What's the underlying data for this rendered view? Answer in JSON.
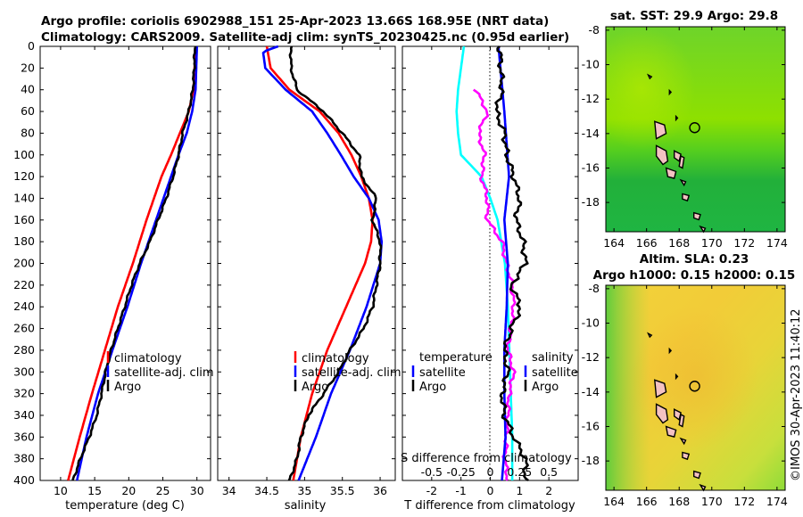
{
  "header": {
    "title_line1": "Argo profile: coriolis 6902988_151 25-Apr-2023 13.66S 168.95E (NRT data)",
    "title_line2": "Climatology: CARS2009. Satellite-adj clim: synTS_20230425.nc (0.95d earlier)"
  },
  "colors": {
    "climatology": "#ff0000",
    "satellite": "#0000ff",
    "argo": "#000000",
    "temp_diff": "#00ffff",
    "sal_diff": "#ff00ff"
  },
  "chart_data": [
    {
      "type": "line",
      "id": "temperature",
      "xlabel": "temperature (deg C)",
      "ylabel": "",
      "xlim": [
        7,
        32
      ],
      "ylim": [
        400,
        0
      ],
      "xticks": [
        10,
        15,
        20,
        25,
        30
      ],
      "yticks": [
        0,
        20,
        40,
        60,
        80,
        100,
        120,
        140,
        160,
        180,
        200,
        220,
        240,
        260,
        280,
        300,
        320,
        340,
        360,
        380,
        400
      ],
      "legend": [
        "climatology",
        "satellite-adj. clim",
        "Argo"
      ],
      "legend_position": "bottom-right",
      "series": [
        {
          "name": "climatology",
          "color": "red",
          "depth": [
            0,
            40,
            60,
            80,
            100,
            120,
            160,
            200,
            240,
            280,
            320,
            360,
            400
          ],
          "values": [
            29.8,
            29.5,
            28.8,
            27.5,
            26.2,
            24.8,
            22.6,
            20.6,
            18.4,
            16.5,
            14.6,
            12.8,
            11.1
          ]
        },
        {
          "name": "satellite-adj. clim",
          "color": "blue",
          "depth": [
            0,
            40,
            60,
            80,
            100,
            120,
            160,
            200,
            240,
            280,
            320,
            360,
            400
          ],
          "values": [
            30.0,
            29.8,
            29.3,
            28.5,
            27.3,
            26.2,
            24.0,
            21.8,
            19.8,
            17.6,
            15.5,
            13.8,
            12.4
          ]
        },
        {
          "name": "Argo",
          "color": "black",
          "depth": [
            0,
            20,
            40,
            60,
            80,
            100,
            120,
            140,
            160,
            180,
            200,
            220,
            240,
            260,
            280,
            300,
            320,
            340,
            360,
            380,
            400
          ],
          "values": [
            29.7,
            29.6,
            29.4,
            28.8,
            27.9,
            27.3,
            26.5,
            25.5,
            24.3,
            23.1,
            21.6,
            20.4,
            19.4,
            18.4,
            17.4,
            16.6,
            16.0,
            15.3,
            14.2,
            12.9,
            11.8
          ]
        }
      ]
    },
    {
      "type": "line",
      "id": "salinity",
      "xlabel": "salinity",
      "ylabel": "",
      "xlim": [
        33.85,
        36.2
      ],
      "ylim": [
        400,
        0
      ],
      "xticks": [
        34,
        34.5,
        35,
        35.5,
        36
      ],
      "xticklabels": [
        "34",
        "34.5",
        "35",
        "35.5",
        "36"
      ],
      "legend": [
        "climatology",
        "satellite-adj. clim",
        "Argo"
      ],
      "legend_position": "bottom-right",
      "series": [
        {
          "name": "climatology",
          "color": "red",
          "depth": [
            0,
            20,
            40,
            60,
            80,
            100,
            120,
            140,
            160,
            180,
            200,
            240,
            280,
            320,
            360,
            400
          ],
          "values": [
            34.5,
            34.55,
            34.8,
            35.2,
            35.45,
            35.62,
            35.75,
            35.85,
            35.9,
            35.88,
            35.8,
            35.55,
            35.3,
            35.1,
            34.95,
            34.85
          ]
        },
        {
          "name": "satellite-adj. clim",
          "color": "blue",
          "depth": [
            0,
            5,
            20,
            40,
            60,
            80,
            100,
            120,
            140,
            160,
            180,
            200,
            240,
            280,
            320,
            360,
            400
          ],
          "values": [
            34.65,
            34.45,
            34.48,
            34.75,
            35.1,
            35.3,
            35.48,
            35.65,
            35.85,
            35.98,
            36.02,
            36.0,
            35.82,
            35.6,
            35.35,
            35.15,
            34.92
          ]
        },
        {
          "name": "Argo",
          "color": "black",
          "depth": [
            0,
            20,
            40,
            60,
            80,
            100,
            120,
            140,
            160,
            180,
            200,
            220,
            240,
            260,
            280,
            300,
            320,
            340,
            360,
            380,
            400
          ],
          "values": [
            34.82,
            34.82,
            34.9,
            35.25,
            35.5,
            35.72,
            35.75,
            35.95,
            35.9,
            36.0,
            36.0,
            35.95,
            35.9,
            35.78,
            35.6,
            35.45,
            35.25,
            35.05,
            34.95,
            34.9,
            34.8
          ]
        }
      ]
    },
    {
      "type": "line",
      "id": "difference",
      "xlabel": "T difference from climatology",
      "secondary_xlabel": "S difference from climatology",
      "xlim": [
        -3,
        3
      ],
      "ylim": [
        400,
        0
      ],
      "xticks": [
        -2,
        -1,
        0,
        1,
        2
      ],
      "secondary_xticks": [
        "-0.5",
        "-0.25",
        "0",
        "0.25",
        "0.5"
      ],
      "secondary_xlim": [
        -0.75,
        0.75
      ],
      "legend_temperature": [
        "temperature",
        "satellite",
        "Argo"
      ],
      "legend_salinity": [
        "salinity",
        "satellite",
        "Argo"
      ],
      "series": [
        {
          "name": "T diff satellite",
          "color": "cyan",
          "depth": [
            0,
            20,
            40,
            60,
            80,
            100,
            120,
            140,
            160,
            200,
            240,
            280,
            320,
            360,
            400
          ],
          "values": [
            -0.9,
            -1.0,
            -1.1,
            -1.15,
            -1.1,
            -1.0,
            -0.3,
            0.0,
            0.25,
            0.5,
            0.6,
            0.65,
            0.7,
            0.75,
            0.75
          ]
        },
        {
          "name": "T diff Argo",
          "color": "magenta",
          "depth": [
            40,
            60,
            80,
            100,
            120,
            140,
            160,
            180,
            200,
            220,
            240,
            260,
            280,
            300,
            320,
            340,
            360,
            380,
            400
          ],
          "values": [
            -0.5,
            -0.1,
            -0.4,
            -0.2,
            -0.3,
            -0.1,
            -0.1,
            0.4,
            0.55,
            0.75,
            0.8,
            0.7,
            0.6,
            0.8,
            0.65,
            0.6,
            0.55,
            0.5,
            0.6
          ]
        },
        {
          "name": "S diff satellite",
          "color": "blue",
          "depth": [
            0,
            60,
            120,
            160,
            200,
            240,
            280,
            320,
            360,
            400
          ],
          "values": [
            0.07,
            0.12,
            0.16,
            0.12,
            0.15,
            0.14,
            0.12,
            0.12,
            0.13,
            0.1
          ]
        },
        {
          "name": "S diff Argo",
          "color": "black",
          "depth": [
            0,
            20,
            40,
            60,
            80,
            100,
            120,
            140,
            160,
            180,
            200,
            220,
            240,
            260,
            280,
            300,
            320,
            340,
            360,
            380,
            400
          ],
          "values": [
            0.08,
            0.09,
            0.1,
            0.05,
            0.12,
            0.14,
            0.2,
            0.25,
            0.22,
            0.28,
            0.3,
            0.18,
            0.26,
            0.18,
            0.12,
            0.15,
            0.1,
            0.12,
            0.2,
            0.3,
            0.3
          ]
        }
      ]
    },
    {
      "type": "heatmap",
      "id": "sst_map",
      "title": "sat. SST: 29.9 Argo: 29.8",
      "xlim": [
        163.5,
        174.5
      ],
      "ylim": [
        -19.7,
        -7.8
      ],
      "xticks": [
        164,
        166,
        168,
        170,
        172,
        174
      ],
      "yticks": [
        -8,
        -10,
        -12,
        -14,
        -16,
        -18
      ],
      "marker": {
        "lon": 168.95,
        "lat": -13.66
      }
    },
    {
      "type": "heatmap",
      "id": "sla_map",
      "title_line1": "Altim. SLA: 0.23",
      "title_line2": "Argo h1000: 0.15 h2000: 0.15",
      "xlim": [
        163.5,
        174.5
      ],
      "ylim": [
        -19.7,
        -7.8
      ],
      "xticks": [
        164,
        166,
        168,
        170,
        172,
        174
      ],
      "yticks": [
        -8,
        -10,
        -12,
        -14,
        -16,
        -18
      ],
      "marker": {
        "lon": 168.95,
        "lat": -13.66
      }
    }
  ],
  "footer": {
    "credit": "©IMOS 30-Apr-2023 11:40:12"
  }
}
